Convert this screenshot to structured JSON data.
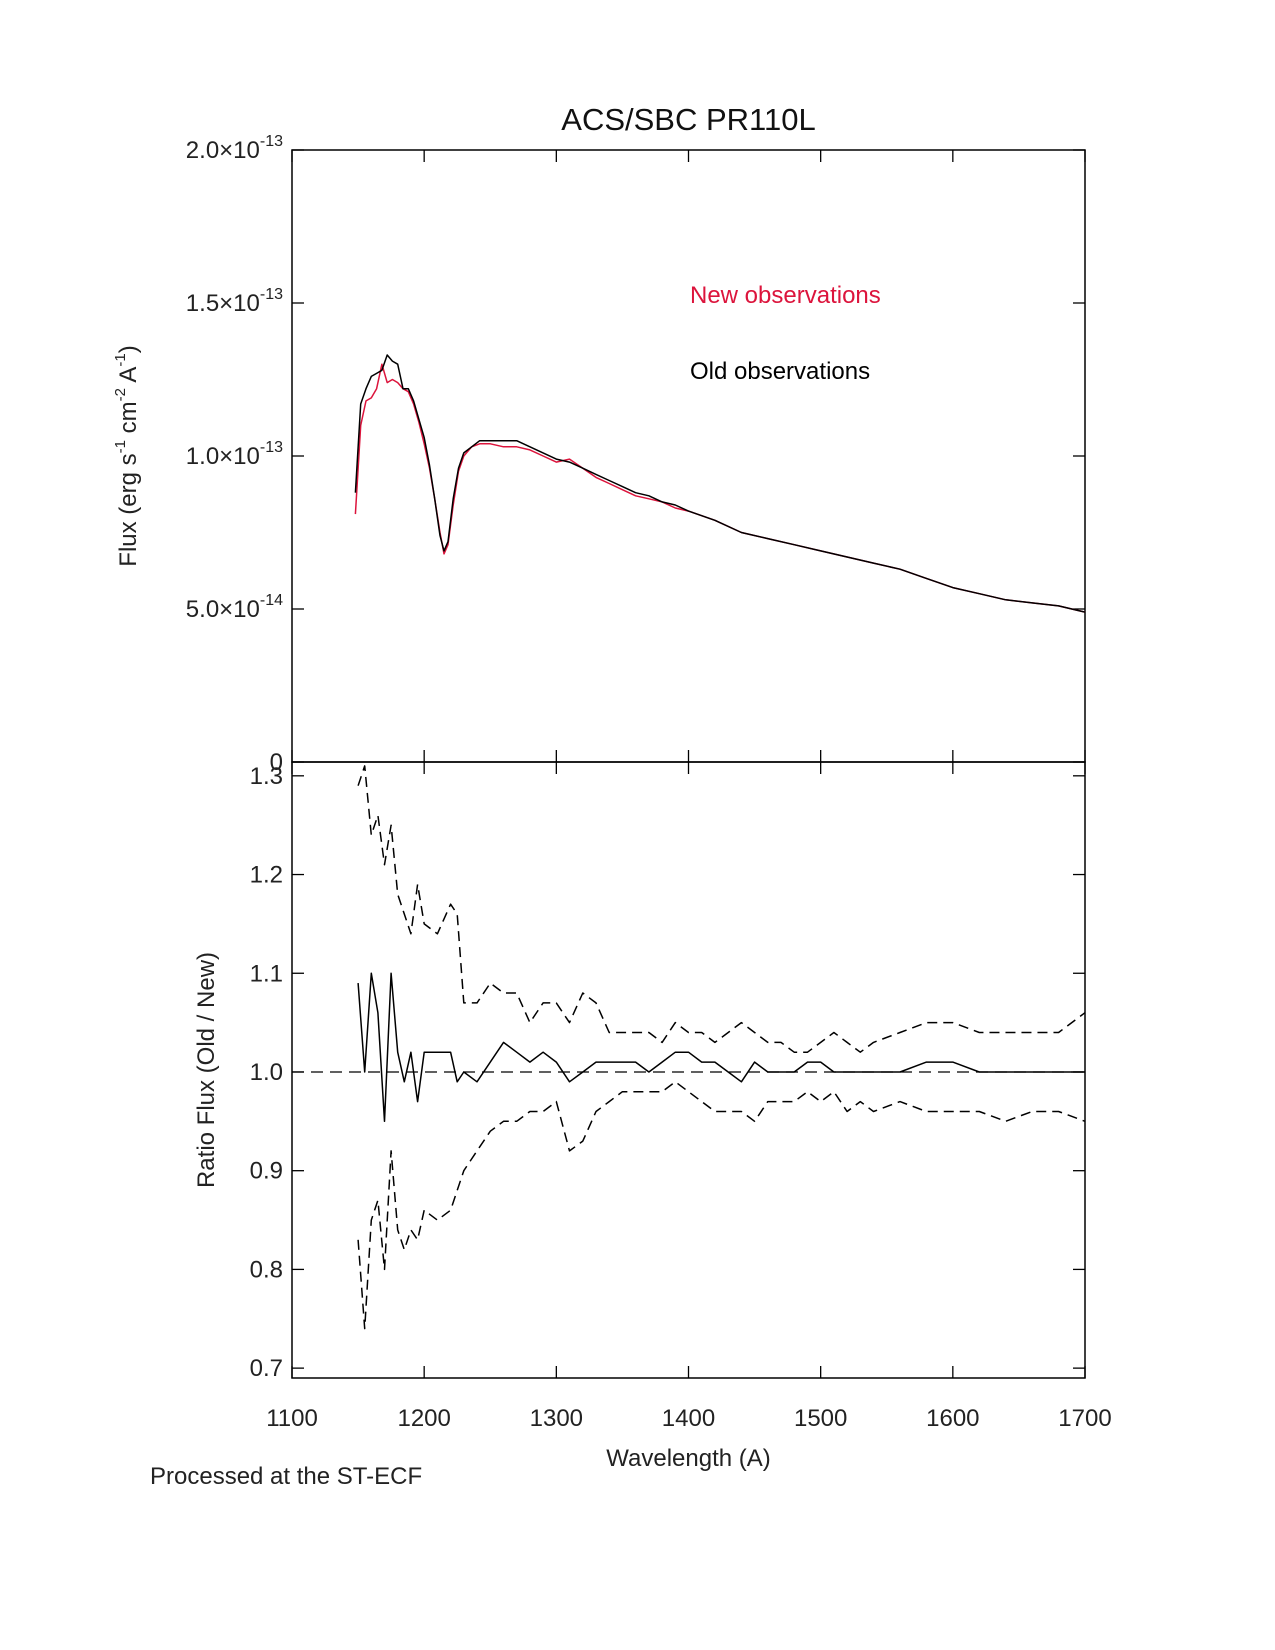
{
  "chart_data": [
    {
      "type": "line",
      "title": "ACS/SBC PR110L",
      "ylabel": [
        {
          "text": "Flux (erg s"
        },
        {
          "text": "-1",
          "sup": true
        },
        {
          "text": " cm"
        },
        {
          "text": "-2",
          "sup": true
        },
        {
          "text": " A"
        },
        {
          "text": "-1",
          "sup": true
        },
        {
          "text": ")"
        }
      ],
      "xlim": [
        1100,
        1700
      ],
      "xticks": [
        1100,
        1200,
        1300,
        1400,
        1500,
        1600,
        1700
      ],
      "xtick_labels": false,
      "ylim": [
        0,
        2e-13
      ],
      "yticks": [
        0,
        {
          "value": 5e-14,
          "label": "5.0×10",
          "exponent": "-14"
        },
        {
          "value": 1e-13,
          "label": "1.0×10",
          "exponent": "-13"
        },
        {
          "value": 1.5e-13,
          "label": "1.5×10",
          "exponent": "-13"
        },
        {
          "value": 2e-13,
          "label": "2.0×10",
          "exponent": "-13"
        }
      ],
      "legend": "upper right",
      "x": [
        1148,
        1152,
        1156,
        1160,
        1164,
        1168,
        1172,
        1176,
        1180,
        1184,
        1188,
        1192,
        1196,
        1200,
        1204,
        1208,
        1212,
        1215,
        1218,
        1222,
        1226,
        1230,
        1236,
        1242,
        1250,
        1260,
        1270,
        1280,
        1290,
        1300,
        1310,
        1320,
        1330,
        1340,
        1350,
        1360,
        1370,
        1380,
        1390,
        1400,
        1420,
        1440,
        1460,
        1480,
        1500,
        1520,
        1540,
        1560,
        1580,
        1600,
        1620,
        1640,
        1660,
        1680,
        1700
      ],
      "series": [
        {
          "name": "New observations",
          "color": "#dc143c",
          "dash": false,
          "values": [
            8.1e-14,
            1.1e-13,
            1.18e-13,
            1.19e-13,
            1.22e-13,
            1.3e-13,
            1.24e-13,
            1.25e-13,
            1.24e-13,
            1.22e-13,
            1.21e-13,
            1.17e-13,
            1.11e-13,
            1.04e-13,
            9.6e-14,
            8.6e-14,
            7.5e-14,
            6.8e-14,
            7.1e-14,
            8.4e-14,
            9.5e-14,
            1e-13,
            1.03e-13,
            1.04e-13,
            1.04e-13,
            1.03e-13,
            1.03e-13,
            1.02e-13,
            1e-13,
            9.8e-14,
            9.9e-14,
            9.6e-14,
            9.3e-14,
            9.1e-14,
            8.9e-14,
            8.7e-14,
            8.6e-14,
            8.5e-14,
            8.3e-14,
            8.2e-14,
            7.9e-14,
            7.5e-14,
            7.3e-14,
            7.1e-14,
            6.9e-14,
            6.7e-14,
            6.5e-14,
            6.3e-14,
            6e-14,
            5.7e-14,
            5.5e-14,
            5.3e-14,
            5.2e-14,
            5.1e-14,
            4.9e-14
          ]
        },
        {
          "name": "Old observations",
          "color": "#000000",
          "dash": false,
          "values": [
            8.8e-14,
            1.17e-13,
            1.22e-13,
            1.26e-13,
            1.27e-13,
            1.28e-13,
            1.33e-13,
            1.31e-13,
            1.3e-13,
            1.22e-13,
            1.22e-13,
            1.18e-13,
            1.12e-13,
            1.06e-13,
            9.7e-14,
            8.6e-14,
            7.4e-14,
            6.9e-14,
            7.2e-14,
            8.6e-14,
            9.6e-14,
            1.01e-13,
            1.03e-13,
            1.05e-13,
            1.05e-13,
            1.05e-13,
            1.05e-13,
            1.03e-13,
            1.01e-13,
            9.9e-14,
            9.8e-14,
            9.6e-14,
            9.4e-14,
            9.2e-14,
            9e-14,
            8.8e-14,
            8.7e-14,
            8.5e-14,
            8.4e-14,
            8.2e-14,
            7.9e-14,
            7.5e-14,
            7.3e-14,
            7.1e-14,
            6.9e-14,
            6.7e-14,
            6.5e-14,
            6.3e-14,
            6e-14,
            5.7e-14,
            5.5e-14,
            5.3e-14,
            5.2e-14,
            5.1e-14,
            4.9e-14
          ]
        }
      ]
    },
    {
      "type": "line",
      "ylabel": [
        {
          "text": "Ratio Flux (Old / New)"
        }
      ],
      "xlabel": "Wavelength (A)",
      "xlim": [
        1100,
        1700
      ],
      "xticks": [
        1100,
        1200,
        1300,
        1400,
        1500,
        1600,
        1700
      ],
      "xtick_labels": true,
      "ylim": [
        0.69,
        1.314
      ],
      "yticks": [
        0.7,
        0.8,
        0.9,
        {
          "value": 1,
          "label": "1.0"
        },
        1.1,
        1.2,
        1.3
      ],
      "hline": 1,
      "x": [
        1150,
        1155,
        1160,
        1165,
        1170,
        1175,
        1180,
        1185,
        1190,
        1195,
        1200,
        1210,
        1220,
        1225,
        1230,
        1240,
        1250,
        1260,
        1270,
        1280,
        1290,
        1300,
        1310,
        1320,
        1330,
        1340,
        1350,
        1360,
        1370,
        1380,
        1390,
        1400,
        1410,
        1420,
        1430,
        1440,
        1450,
        1460,
        1470,
        1480,
        1490,
        1500,
        1510,
        1520,
        1530,
        1540,
        1560,
        1580,
        1600,
        1620,
        1640,
        1660,
        1680,
        1700
      ],
      "series": [
        {
          "color": "#000000",
          "dash": false,
          "values": [
            1.09,
            1.0,
            1.1,
            1.06,
            0.95,
            1.1,
            1.02,
            0.99,
            1.02,
            0.97,
            1.02,
            1.02,
            1.02,
            0.99,
            1.0,
            0.99,
            1.01,
            1.03,
            1.02,
            1.01,
            1.02,
            1.01,
            0.99,
            1.0,
            1.01,
            1.01,
            1.01,
            1.01,
            1.0,
            1.01,
            1.02,
            1.02,
            1.01,
            1.01,
            1.0,
            0.99,
            1.01,
            1.0,
            1.0,
            1.0,
            1.01,
            1.01,
            1.0,
            1.0,
            1.0,
            1.0,
            1.0,
            1.01,
            1.01,
            1.0,
            1.0,
            1.0,
            1.0,
            1.0
          ]
        },
        {
          "color": "#000000",
          "dash": true,
          "values": [
            1.29,
            1.31,
            1.24,
            1.26,
            1.21,
            1.25,
            1.18,
            1.16,
            1.14,
            1.19,
            1.15,
            1.14,
            1.17,
            1.16,
            1.07,
            1.07,
            1.09,
            1.08,
            1.08,
            1.05,
            1.07,
            1.07,
            1.05,
            1.08,
            1.07,
            1.04,
            1.04,
            1.04,
            1.04,
            1.03,
            1.05,
            1.04,
            1.04,
            1.03,
            1.04,
            1.05,
            1.04,
            1.03,
            1.03,
            1.02,
            1.02,
            1.03,
            1.04,
            1.03,
            1.02,
            1.03,
            1.04,
            1.05,
            1.05,
            1.04,
            1.04,
            1.04,
            1.04,
            1.06
          ]
        },
        {
          "color": "#000000",
          "dash": true,
          "values": [
            0.83,
            0.74,
            0.85,
            0.87,
            0.8,
            0.92,
            0.84,
            0.82,
            0.84,
            0.83,
            0.86,
            0.85,
            0.86,
            0.88,
            0.9,
            0.92,
            0.94,
            0.95,
            0.95,
            0.96,
            0.96,
            0.97,
            0.92,
            0.93,
            0.96,
            0.97,
            0.98,
            0.98,
            0.98,
            0.98,
            0.99,
            0.98,
            0.97,
            0.96,
            0.96,
            0.96,
            0.95,
            0.97,
            0.97,
            0.97,
            0.98,
            0.97,
            0.98,
            0.96,
            0.97,
            0.96,
            0.97,
            0.96,
            0.96,
            0.96,
            0.95,
            0.96,
            0.96,
            0.95
          ]
        }
      ]
    }
  ],
  "footer": "Processed at the ST-ECF"
}
